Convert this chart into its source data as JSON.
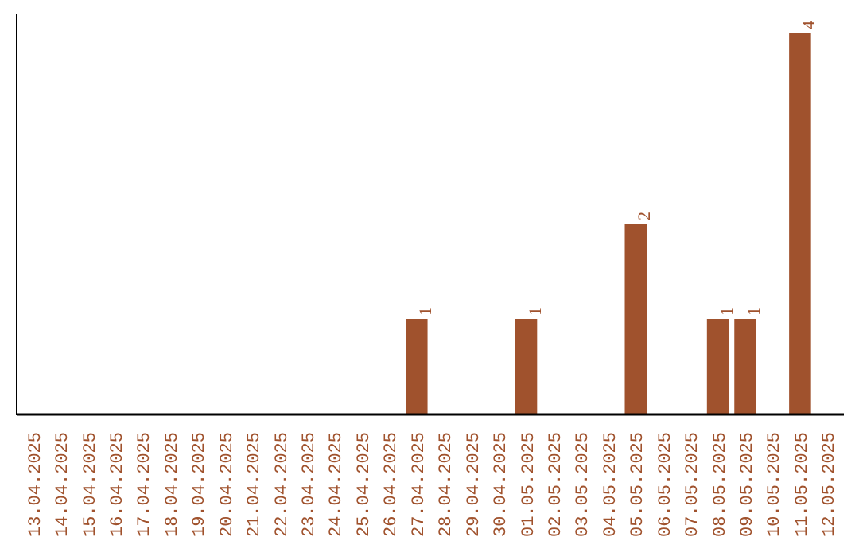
{
  "chart_data": {
    "type": "bar",
    "categories": [
      "13.04.2025",
      "14.04.2025",
      "15.04.2025",
      "16.04.2025",
      "17.04.2025",
      "18.04.2025",
      "19.04.2025",
      "20.04.2025",
      "21.04.2025",
      "22.04.2025",
      "23.04.2025",
      "24.04.2025",
      "25.04.2025",
      "26.04.2025",
      "27.04.2025",
      "28.04.2025",
      "29.04.2025",
      "30.04.2025",
      "01.05.2025",
      "02.05.2025",
      "03.05.2025",
      "04.05.2025",
      "05.05.2025",
      "06.05.2025",
      "07.05.2025",
      "08.05.2025",
      "09.05.2025",
      "10.05.2025",
      "11.05.2025",
      "12.05.2025"
    ],
    "values": [
      null,
      null,
      null,
      null,
      null,
      null,
      null,
      null,
      null,
      null,
      null,
      null,
      null,
      null,
      1,
      null,
      null,
      null,
      1,
      null,
      null,
      null,
      2,
      null,
      null,
      1,
      1,
      null,
      4,
      null
    ],
    "ylim": [
      0,
      4.2
    ],
    "value_labels": [
      null,
      null,
      null,
      null,
      null,
      null,
      null,
      null,
      null,
      null,
      null,
      null,
      null,
      null,
      "1",
      null,
      null,
      null,
      "1",
      null,
      null,
      null,
      "2",
      null,
      null,
      "1",
      "1",
      null,
      "4",
      null
    ],
    "color": "#a0522d",
    "tick_labels": "x",
    "grid": false,
    "legend": false
  }
}
